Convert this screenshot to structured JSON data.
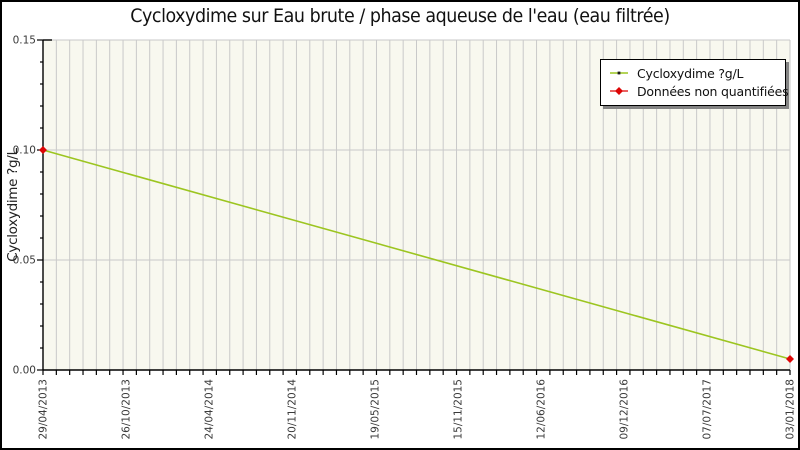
{
  "title": "Cycloxydime sur Eau brute / phase aqueuse de l'eau (eau filtrée)",
  "legend": {
    "items": [
      {
        "label": "Cycloxydime ?g/L",
        "marker": "green-line-with-dot"
      },
      {
        "label": "Données non quantifiées",
        "marker": "red-line-with-diamond"
      }
    ]
  },
  "chart_data": {
    "type": "line",
    "title": "Cycloxydime sur Eau brute / phase aqueuse de l'eau (eau filtrée)",
    "xlabel": "",
    "ylabel": "Cycloxydime ?g/L",
    "ylim": [
      0,
      0.15
    ],
    "y_major_ticks": [
      "0.00",
      "0.05",
      "0.10",
      "0.15"
    ],
    "y_minor_step": 0.01,
    "x_tick_labels": [
      "29/04/2013",
      "26/10/2013",
      "24/04/2014",
      "20/11/2014",
      "19/05/2015",
      "15/11/2015",
      "12/06/2016",
      "09/12/2016",
      "07/07/2017",
      "03/01/2018"
    ],
    "x_minor_divisions": 56,
    "grid": {
      "vertical_monthly": true,
      "horizontal_major": true
    },
    "legend_position": "top-right",
    "series": [
      {
        "name": "Cycloxydime ?g/L",
        "color": "#9cc520",
        "points": [
          {
            "date": "29/04/2013",
            "value": 0.1,
            "non_quantified": true
          },
          {
            "date": "03/01/2018",
            "value": 0.005,
            "non_quantified": true
          }
        ]
      }
    ],
    "colors": {
      "plot_background": "#f8f8ef",
      "gridline": "#c9c9c9",
      "axis_spine": "#000000",
      "tick_label": "#3a3a3a",
      "series_line": "#9cc520",
      "non_quantified_marker": "#dd0505",
      "legend_marker_dot": "#1a1a1a"
    }
  }
}
